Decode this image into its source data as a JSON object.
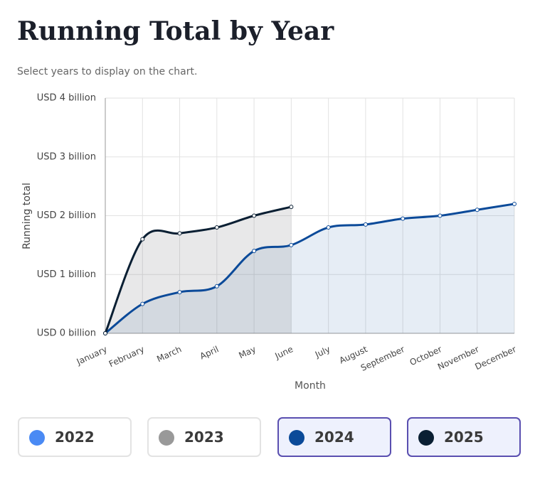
{
  "chart_data": {
    "type": "line",
    "title": "Running Total by Year",
    "subtitle": "Select years to display on the chart.",
    "x_label": "Month",
    "y_label": "Running total",
    "categories": [
      "January",
      "February",
      "March",
      "April",
      "May",
      "June",
      "July",
      "August",
      "September",
      "October",
      "November",
      "December"
    ],
    "series": [
      {
        "name": "2024",
        "color": "#0b4a99",
        "values": [
          0,
          0.5,
          0.7,
          0.8,
          1.4,
          1.5,
          1.8,
          1.85,
          1.95,
          2.0,
          2.1,
          2.2
        ]
      },
      {
        "name": "2025",
        "color": "#0a1f33",
        "values": [
          0,
          1.6,
          1.7,
          1.8,
          2.0,
          2.15,
          null,
          null,
          null,
          null,
          null,
          null
        ]
      }
    ],
    "ylim": [
      0,
      4
    ],
    "yticks": [
      {
        "value": 0,
        "label": "USD 0 billion"
      },
      {
        "value": 1,
        "label": "USD 1 billion"
      },
      {
        "value": 2,
        "label": "USD 2 billion"
      },
      {
        "value": 3,
        "label": "USD 3 billion"
      },
      {
        "value": 4,
        "label": "USD 4 billion"
      }
    ],
    "grid": true,
    "legend": [
      {
        "name": "2022",
        "color": "#4a8af4",
        "selected": false
      },
      {
        "name": "2023",
        "color": "#999999",
        "selected": false
      },
      {
        "name": "2024",
        "color": "#0b4a99",
        "selected": true
      },
      {
        "name": "2025",
        "color": "#0a1f33",
        "selected": true
      }
    ]
  }
}
